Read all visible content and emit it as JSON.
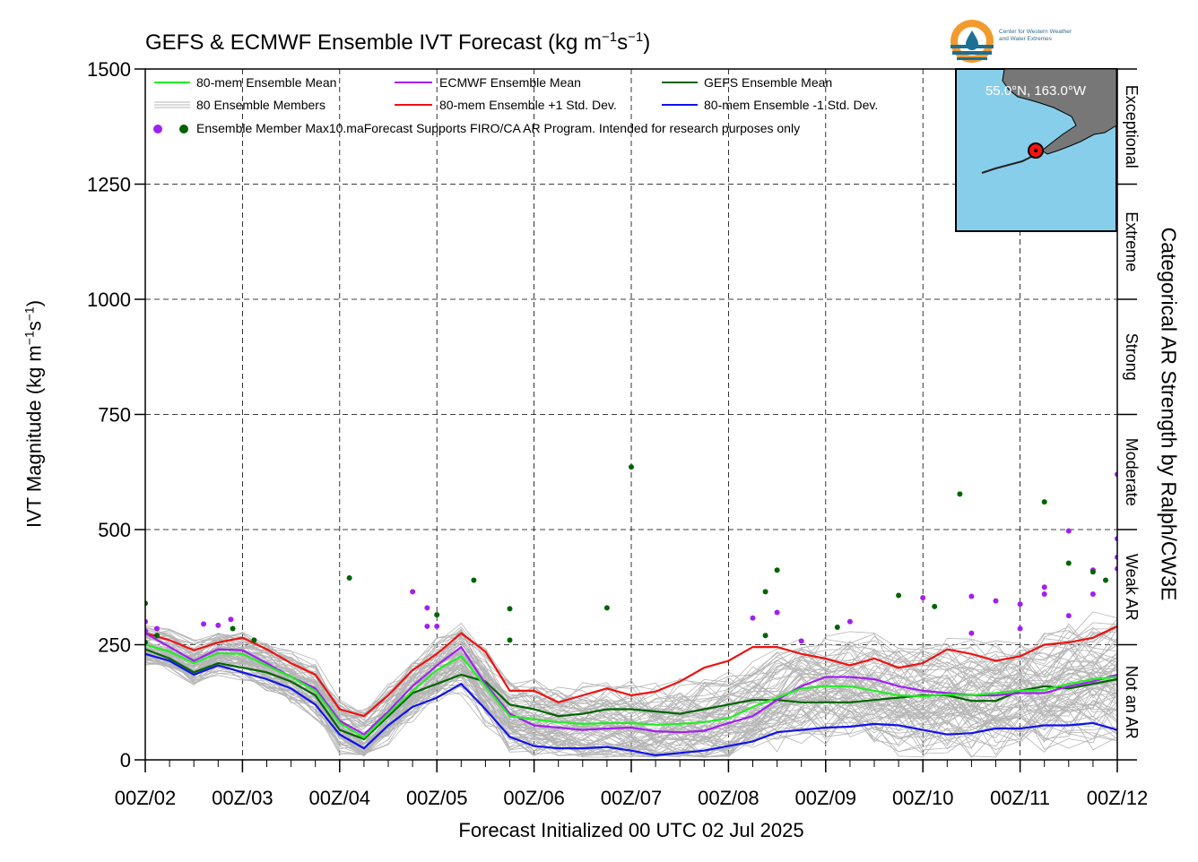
{
  "title": {
    "main": "GEFS & ECMWF Ensemble IVT Forecast (kg m",
    "sup1": "−1",
    "mid": "s",
    "sup2": "−1",
    "end": ")"
  },
  "y_axis_label": {
    "main": "IVT Magnitude (kg m",
    "sup1": "−1",
    "mid": "s",
    "sup2": "−1",
    "end": ")"
  },
  "right_axis_label": "Categorical AR Strength by Ralph/CW3E",
  "x_axis_label": "Forecast Initialized 00 UTC 02 Jul 2025",
  "logo": {
    "line1": "Center for Western Weather",
    "line2": "and Water Extremes"
  },
  "inset_map": {
    "location_label": "55.0°N, 163.0°W",
    "land_color": "#777777",
    "ocean_color": "#87ceeb"
  },
  "colors": {
    "ens_mean": "#22ee22",
    "ecmwf_mean": "#a020f0",
    "gefs_mean": "#006400",
    "plus_sd": "#ee1111",
    "minus_sd": "#1111ee",
    "members": "#b4b4b4",
    "marker_line": "#ff0000"
  },
  "legend": {
    "ens_mean": "80-mem Ensemble Mean",
    "ecmwf_mean": "ECMWF Ensemble Mean",
    "gefs_mean": "GEFS Ensemble Mean",
    "members": "80 Ensemble Members",
    "plus_sd": "80-mem Ensemble +1 Std. Dev.",
    "minus_sd": "80-mem Ensemble -1 Std. Dev.",
    "max_note": "Ensemble Member Max10.maForecast Supports FIRO/CA AR Program. Intended for research purposes only"
  },
  "chart_data": {
    "type": "line",
    "title": "GEFS & ECMWF Ensemble IVT Forecast (kg m-1s-1)",
    "xlabel": "Forecast Initialized 00 UTC 02 Jul 2025",
    "ylabel": "IVT Magnitude (kg m-1s-1)",
    "x_tick_labels": [
      "00Z/02",
      "00Z/03",
      "00Z/04",
      "00Z/05",
      "00Z/06",
      "00Z/07",
      "00Z/08",
      "00Z/09",
      "00Z/10",
      "00Z/11",
      "00Z/12"
    ],
    "x_unit": "days since 00Z/02",
    "xlim": [
      0,
      10
    ],
    "ylim": [
      0,
      1500
    ],
    "y_ticks": [
      0,
      250,
      500,
      750,
      1000,
      1250,
      1500
    ],
    "categories_right": [
      {
        "label": "Not an AR",
        "range": [
          0,
          250
        ]
      },
      {
        "label": "Weak AR",
        "range": [
          250,
          500
        ]
      },
      {
        "label": "Moderate",
        "range": [
          500,
          750
        ]
      },
      {
        "label": "Strong",
        "range": [
          750,
          1000
        ]
      },
      {
        "label": "Extreme",
        "range": [
          1000,
          1250
        ]
      },
      {
        "label": "Exceptional",
        "range": [
          1250,
          1500
        ]
      }
    ],
    "grid": true,
    "legend_position": "top-left",
    "series": [
      {
        "name": "80-mem Ensemble Mean",
        "x": [
          0,
          0.25,
          0.5,
          0.75,
          1,
          1.25,
          1.5,
          1.75,
          2,
          2.25,
          2.5,
          2.75,
          3,
          3.25,
          3.5,
          3.75,
          4,
          4.25,
          4.5,
          4.75,
          5,
          5.25,
          5.5,
          5.75,
          6,
          6.25,
          6.5,
          6.75,
          7,
          7.25,
          7.5,
          7.75,
          8,
          8.25,
          8.5,
          8.75,
          9,
          9.25,
          9.5,
          9.75,
          10
        ],
        "y": [
          250,
          235,
          210,
          232,
          230,
          205,
          180,
          150,
          80,
          48,
          100,
          150,
          195,
          225,
          160,
          95,
          88,
          82,
          78,
          80,
          80,
          76,
          78,
          82,
          90,
          115,
          135,
          155,
          160,
          160,
          150,
          140,
          138,
          142,
          140,
          145,
          150,
          152,
          165,
          175,
          180
        ]
      },
      {
        "name": "ECMWF Ensemble Mean",
        "x": [
          0,
          0.25,
          0.5,
          0.75,
          1,
          1.25,
          1.5,
          1.75,
          2,
          2.25,
          2.5,
          2.75,
          3,
          3.25,
          3.5,
          3.75,
          4,
          4.25,
          4.5,
          4.75,
          5,
          5.25,
          5.5,
          5.75,
          6,
          6.25,
          6.5,
          6.75,
          7,
          7.25,
          7.5,
          7.75,
          8,
          8.25,
          8.5,
          8.75,
          9,
          9.25,
          9.5,
          9.75,
          10
        ],
        "y": [
          275,
          245,
          215,
          240,
          238,
          210,
          180,
          155,
          85,
          55,
          105,
          160,
          205,
          245,
          165,
          100,
          75,
          70,
          65,
          68,
          70,
          62,
          60,
          63,
          80,
          95,
          130,
          160,
          180,
          180,
          175,
          160,
          150,
          145,
          140,
          140,
          145,
          145,
          160,
          170,
          185
        ]
      },
      {
        "name": "GEFS Ensemble Mean",
        "x": [
          0,
          0.25,
          0.5,
          0.75,
          1,
          1.25,
          1.5,
          1.75,
          2,
          2.25,
          2.5,
          2.75,
          3,
          3.25,
          3.5,
          3.75,
          4,
          4.25,
          4.5,
          4.75,
          5,
          5.25,
          5.5,
          5.75,
          6,
          6.25,
          6.5,
          6.75,
          7,
          7.25,
          7.5,
          7.75,
          8,
          8.25,
          8.5,
          8.75,
          9,
          9.25,
          9.5,
          9.75,
          10
        ],
        "y": [
          240,
          220,
          190,
          210,
          200,
          190,
          170,
          140,
          65,
          45,
          95,
          145,
          165,
          185,
          170,
          120,
          110,
          95,
          100,
          110,
          110,
          105,
          100,
          110,
          120,
          130,
          130,
          125,
          125,
          125,
          130,
          135,
          140,
          140,
          128,
          128,
          150,
          160,
          155,
          165,
          175
        ]
      },
      {
        "name": "80-mem Ensemble +1 Std. Dev.",
        "x": [
          0,
          0.25,
          0.5,
          0.75,
          1,
          1.25,
          1.5,
          1.75,
          2,
          2.25,
          2.5,
          2.75,
          3,
          3.25,
          3.5,
          3.75,
          4,
          4.25,
          4.5,
          4.75,
          5,
          5.25,
          5.5,
          5.75,
          6,
          6.25,
          6.5,
          6.75,
          7,
          7.25,
          7.5,
          7.75,
          8,
          8.25,
          8.5,
          8.75,
          9,
          9.25,
          9.5,
          9.75,
          10
        ],
        "y": [
          275,
          260,
          238,
          255,
          265,
          240,
          210,
          185,
          110,
          95,
          140,
          195,
          230,
          275,
          235,
          150,
          150,
          125,
          140,
          155,
          140,
          148,
          170,
          200,
          215,
          245,
          245,
          230,
          220,
          205,
          220,
          200,
          210,
          240,
          230,
          215,
          225,
          250,
          255,
          265,
          290
        ]
      },
      {
        "name": "80-mem Ensemble -1 Std. Dev.",
        "x": [
          0,
          0.25,
          0.5,
          0.75,
          1,
          1.25,
          1.5,
          1.75,
          2,
          2.25,
          2.5,
          2.75,
          3,
          3.25,
          3.5,
          3.75,
          4,
          4.25,
          4.5,
          4.75,
          5,
          5.25,
          5.5,
          5.75,
          6,
          6.25,
          6.5,
          6.75,
          7,
          7.25,
          7.5,
          7.75,
          8,
          8.25,
          8.5,
          8.75,
          9,
          9.25,
          9.5,
          9.75,
          10
        ],
        "y": [
          230,
          215,
          185,
          205,
          190,
          175,
          155,
          120,
          55,
          25,
          75,
          115,
          135,
          165,
          110,
          50,
          30,
          25,
          25,
          28,
          20,
          10,
          15,
          20,
          30,
          40,
          60,
          65,
          70,
          72,
          78,
          75,
          65,
          55,
          58,
          68,
          68,
          75,
          75,
          80,
          65
        ]
      }
    ],
    "member_max_points": {
      "ecmwf": [
        [
          0,
          300
        ],
        [
          0,
          280
        ],
        [
          0.12,
          285
        ],
        [
          0.6,
          295
        ],
        [
          0.75,
          292
        ],
        [
          0.88,
          305
        ],
        [
          2.75,
          365
        ],
        [
          2.9,
          330
        ],
        [
          2.9,
          290
        ],
        [
          3,
          290
        ],
        [
          6.25,
          308
        ],
        [
          6.5,
          320
        ],
        [
          6.75,
          258
        ],
        [
          7.25,
          300
        ],
        [
          8,
          352
        ],
        [
          8.5,
          275
        ],
        [
          8.5,
          355
        ],
        [
          8.75,
          345
        ],
        [
          9,
          338
        ],
        [
          9,
          285
        ],
        [
          9.25,
          375
        ],
        [
          9.25,
          360
        ],
        [
          9.5,
          497
        ],
        [
          9.5,
          313
        ],
        [
          9.75,
          412
        ],
        [
          9.75,
          360
        ],
        [
          10,
          620
        ],
        [
          10,
          480
        ],
        [
          10,
          440
        ],
        [
          10,
          415
        ]
      ],
      "gefs": [
        [
          0,
          340
        ],
        [
          0,
          255
        ],
        [
          0.12,
          270
        ],
        [
          0.9,
          285
        ],
        [
          1.12,
          260
        ],
        [
          2.1,
          395
        ],
        [
          3,
          315
        ],
        [
          3.38,
          390
        ],
        [
          3.75,
          328
        ],
        [
          3.75,
          260
        ],
        [
          4.75,
          330
        ],
        [
          5,
          636
        ],
        [
          6.38,
          365
        ],
        [
          6.38,
          270
        ],
        [
          6.5,
          412
        ],
        [
          7.12,
          288
        ],
        [
          7.75,
          357
        ],
        [
          8.12,
          333
        ],
        [
          8.38,
          577
        ],
        [
          9.25,
          560
        ],
        [
          9.5,
          427
        ],
        [
          9.75,
          408
        ],
        [
          9.88,
          390
        ]
      ]
    }
  }
}
